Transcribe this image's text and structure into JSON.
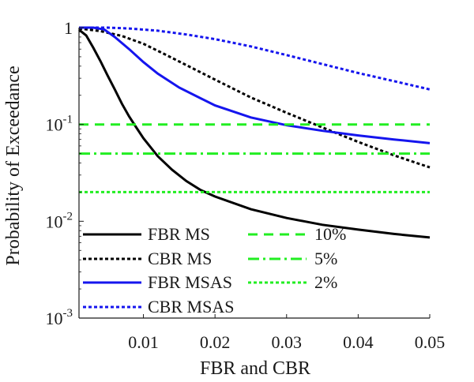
{
  "chart_data": {
    "type": "line",
    "title": "",
    "xlabel": "FBR and CBR",
    "ylabel": "Probability of Exceedance",
    "xlim": [
      0.001,
      0.05
    ],
    "ylim": [
      0.001,
      1
    ],
    "yscale": "log",
    "grid": false,
    "legend_position": "bottom-left",
    "x_ticks": [
      0.01,
      0.02,
      0.03,
      0.04,
      0.05
    ],
    "x_tick_labels": [
      "0.01",
      "0.02",
      "0.03",
      "0.04",
      "0.05"
    ],
    "y_ticks": [
      1,
      0.1,
      0.01,
      0.001
    ],
    "y_tick_labels": [
      {
        "base": "1",
        "exp": ""
      },
      {
        "base": "10",
        "exp": "-1"
      },
      {
        "base": "10",
        "exp": "-2"
      },
      {
        "base": "10",
        "exp": "-3"
      }
    ],
    "series": [
      {
        "name": "FBR MS",
        "color": "#000000",
        "dash": "solid",
        "x": [
          0.001,
          0.002,
          0.003,
          0.004,
          0.005,
          0.006,
          0.007,
          0.008,
          0.009,
          0.01,
          0.012,
          0.014,
          0.016,
          0.018,
          0.02,
          0.025,
          0.03,
          0.035,
          0.04,
          0.045,
          0.05
        ],
        "y": [
          0.95,
          0.83,
          0.62,
          0.45,
          0.32,
          0.23,
          0.163,
          0.121,
          0.093,
          0.072,
          0.047,
          0.034,
          0.026,
          0.021,
          0.018,
          0.0133,
          0.0108,
          0.0092,
          0.0082,
          0.0074,
          0.0068
        ]
      },
      {
        "name": "CBR MS",
        "color": "#000000",
        "dash": "dotted",
        "x": [
          0.001,
          0.004,
          0.007,
          0.01,
          0.013,
          0.016,
          0.02,
          0.025,
          0.03,
          0.035,
          0.04,
          0.045,
          0.05
        ],
        "y": [
          0.98,
          0.92,
          0.82,
          0.68,
          0.53,
          0.41,
          0.29,
          0.19,
          0.132,
          0.093,
          0.066,
          0.048,
          0.036
        ]
      },
      {
        "name": "FBR MSAS",
        "color": "#1515ee",
        "dash": "solid",
        "x": [
          0.001,
          0.003,
          0.0045,
          0.006,
          0.008,
          0.01,
          0.012,
          0.015,
          0.02,
          0.025,
          0.03,
          0.035,
          0.04,
          0.045,
          0.05
        ],
        "y": [
          1.0,
          1.0,
          0.96,
          0.8,
          0.6,
          0.44,
          0.335,
          0.24,
          0.157,
          0.118,
          0.098,
          0.086,
          0.077,
          0.07,
          0.064
        ]
      },
      {
        "name": "CBR MSAS",
        "color": "#1515ee",
        "dash": "dotted",
        "x": [
          0.001,
          0.005,
          0.008,
          0.012,
          0.016,
          0.02,
          0.025,
          0.03,
          0.035,
          0.04,
          0.045,
          0.05
        ],
        "y": [
          1.0,
          1.0,
          0.98,
          0.93,
          0.85,
          0.76,
          0.64,
          0.52,
          0.42,
          0.34,
          0.28,
          0.23
        ]
      },
      {
        "name": "10%",
        "color": "#22ee22",
        "dash": "dashed",
        "x": [
          0.001,
          0.05
        ],
        "y": [
          0.1,
          0.1
        ]
      },
      {
        "name": "5%",
        "color": "#22ee22",
        "dash": "dashdot",
        "x": [
          0.001,
          0.05
        ],
        "y": [
          0.05,
          0.05
        ]
      },
      {
        "name": "2%",
        "color": "#22ee22",
        "dash": "dotted",
        "x": [
          0.001,
          0.05
        ],
        "y": [
          0.02,
          0.02
        ]
      }
    ]
  }
}
